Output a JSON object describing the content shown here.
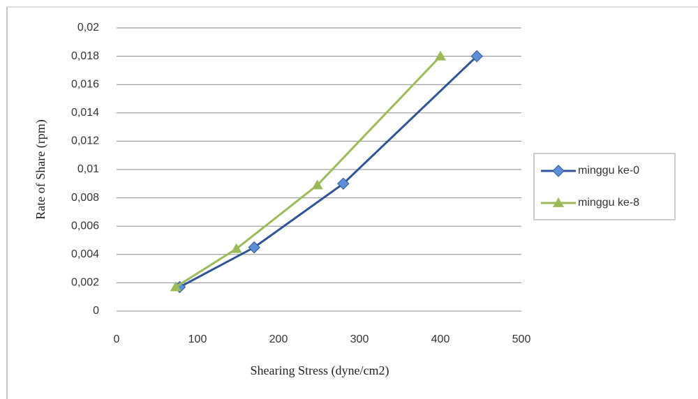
{
  "chart_data": {
    "type": "scatter-line",
    "xlabel": "Shearing Stress (dyne/cm2)",
    "ylabel": "Rate of Share (rpm)",
    "series": [
      {
        "name": "minggu ke-0",
        "color": "#2f5597",
        "marker": "diamond",
        "x": [
          78,
          170,
          280,
          445
        ],
        "values": [
          0.0017,
          0.0045,
          0.009,
          0.018
        ]
      },
      {
        "name": "minggu ke-8",
        "color": "#9bbb59",
        "marker": "triangle",
        "x": [
          73,
          148,
          248,
          400
        ],
        "values": [
          0.0017,
          0.0044,
          0.0089,
          0.018
        ]
      }
    ],
    "xlim": [
      0,
      500
    ],
    "xticks": [
      0,
      100,
      200,
      300,
      400,
      500
    ],
    "ylim": [
      0,
      0.02
    ],
    "yticks": [
      0,
      {
        "value": 0.002,
        "label": "0,002"
      },
      {
        "value": 0.004,
        "label": "0,004"
      },
      {
        "value": 0.006,
        "label": "0,006"
      },
      {
        "value": 0.008,
        "label": "0,008"
      },
      {
        "value": 0.01,
        "label": "0,01"
      },
      {
        "value": 0.012,
        "label": "0,012"
      },
      {
        "value": 0.014,
        "label": "0,014"
      },
      {
        "value": 0.016,
        "label": "0,016"
      },
      {
        "value": 0.018,
        "label": "0,018"
      },
      {
        "value": 0.02,
        "label": "0,02"
      }
    ],
    "grid": true,
    "legend": "right"
  }
}
